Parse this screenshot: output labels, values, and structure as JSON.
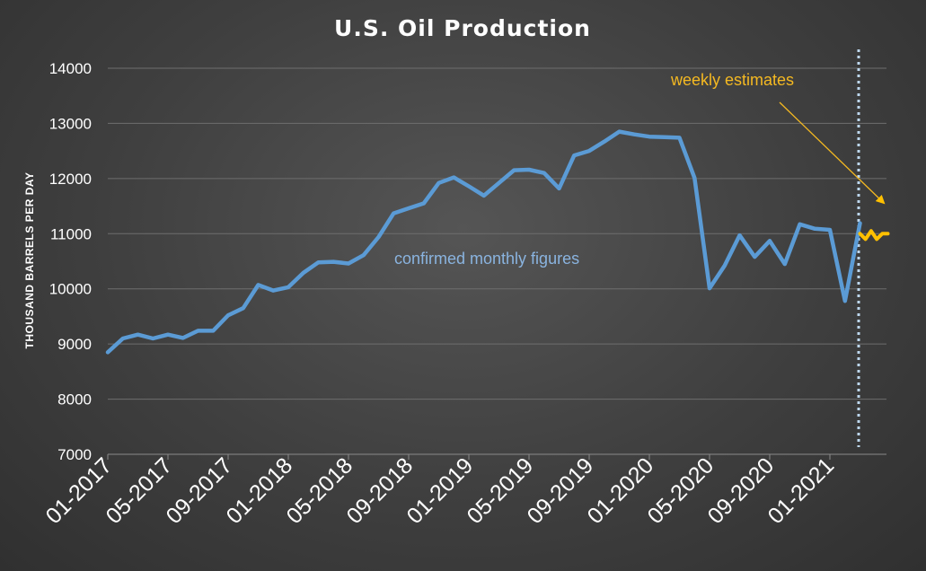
{
  "chart_data": {
    "type": "line",
    "title": "U.S. Oil Production",
    "ylabel": "THOUSAND BARRELS PER DAY",
    "xlabel": "",
    "ylim": [
      7000,
      14000
    ],
    "yticks": [
      "7000",
      "8000",
      "9000",
      "10000",
      "11000",
      "12000",
      "13000",
      "14000"
    ],
    "xticks": [
      "01-2017",
      "05-2017",
      "09-2017",
      "01-2018",
      "05-2018",
      "09-2018",
      "01-2019",
      "05-2019",
      "09-2019",
      "01-2020",
      "05-2020",
      "09-2020",
      "01-2021"
    ],
    "grid": true,
    "colors": {
      "monthly": "#5b9bd5",
      "weekly": "#ffc000",
      "divider": "#bdd7ee"
    },
    "series": [
      {
        "x": [
          "01-2017",
          "02-2017",
          "03-2017",
          "04-2017",
          "05-2017",
          "06-2017",
          "07-2017",
          "08-2017",
          "09-2017",
          "10-2017",
          "11-2017",
          "12-2017",
          "01-2018",
          "02-2018",
          "03-2018",
          "04-2018",
          "05-2018",
          "06-2018",
          "07-2018",
          "08-2018",
          "09-2018",
          "10-2018",
          "11-2018",
          "12-2018",
          "01-2019",
          "02-2019",
          "03-2019",
          "04-2019",
          "05-2019",
          "06-2019",
          "07-2019",
          "08-2019",
          "09-2019",
          "10-2019",
          "11-2019",
          "12-2019",
          "01-2020",
          "02-2020",
          "03-2020",
          "04-2020",
          "05-2020",
          "06-2020",
          "07-2020",
          "08-2020",
          "09-2020",
          "10-2020",
          "11-2020",
          "12-2020",
          "01-2021",
          "02-2021",
          "03-2021"
        ],
        "values": [
          8850,
          9100,
          9170,
          9100,
          9170,
          9110,
          9240,
          9240,
          9520,
          9650,
          10070,
          9970,
          10030,
          10290,
          10480,
          10490,
          10460,
          10610,
          10940,
          11370,
          11460,
          11550,
          11920,
          12020,
          11860,
          11690,
          11920,
          12150,
          12160,
          12100,
          11820,
          12420,
          12500,
          12670,
          12850,
          12800,
          12760,
          12750,
          12740,
          12010,
          10010,
          10420,
          10970,
          10580,
          10870,
          10450,
          11170,
          11090,
          11070,
          9780,
          11190
        ]
      },
      {
        "x": [
          "03-2021",
          "03-2021 w2",
          "03-2021 w3",
          "04-2021 w1",
          "04-2021 w2",
          "04-2021 w3"
        ],
        "values": [
          11000,
          10900,
          11050,
          10900,
          11000,
          11000
        ]
      }
    ],
    "annotations": [
      {
        "text": "weekly estimates",
        "color": "#ffc000"
      },
      {
        "text": "confirmed monthly figures",
        "color": "#8ab4e0"
      }
    ]
  }
}
